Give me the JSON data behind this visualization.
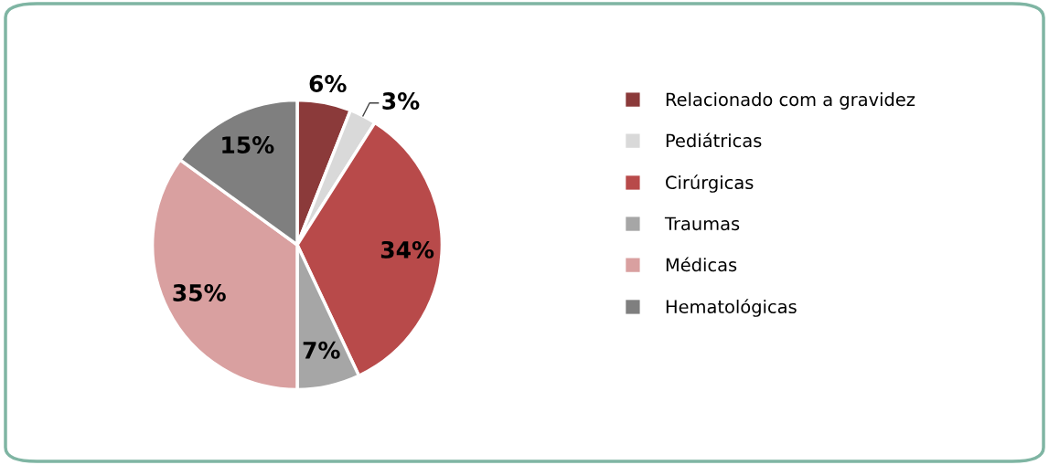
{
  "chart_data": {
    "type": "pie",
    "categories": [
      "Relacionado com a gravidez",
      "Pediátricas",
      "Cirúrgicas",
      "Traumas",
      "Médicas",
      "Hematológicas"
    ],
    "values": [
      6,
      3,
      34,
      7,
      35,
      15
    ],
    "value_labels": [
      "6%",
      "3%",
      "34%",
      "7%",
      "35%",
      "15%"
    ],
    "colors": [
      "#8b3a3a",
      "#d9d9d9",
      "#b84a4a",
      "#a6a6a6",
      "#d9a0a0",
      "#7f7f7f"
    ],
    "legend": "right"
  }
}
